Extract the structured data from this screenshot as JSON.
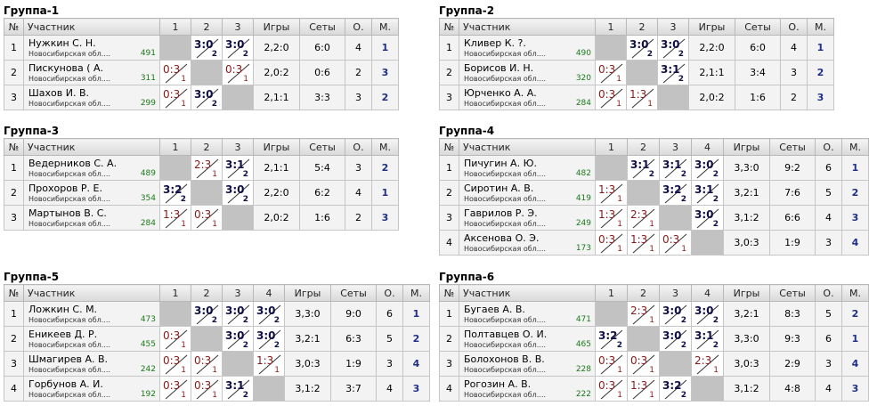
{
  "groups": [
    {
      "title": "Группа-1",
      "headers": {
        "num": "№",
        "player": "Участник",
        "games": "Игры",
        "sets": "Сеты",
        "points": "О.",
        "place": "М."
      },
      "opponents": [
        "1",
        "2",
        "3"
      ],
      "rows": [
        {
          "num": "1",
          "name": "Нужкин С. Н.",
          "region": "Новосибирская обл....",
          "rating": "491",
          "cells": [
            null,
            {
              "score": "3:0",
              "sub": "2",
              "result": "win"
            },
            {
              "score": "3:0",
              "sub": "2",
              "result": "win"
            }
          ],
          "games": "2,2:0",
          "sets": "6:0",
          "points": "4",
          "place": "1"
        },
        {
          "num": "2",
          "name": "Пискунова ( А.",
          "region": "Новосибирская обл....",
          "rating": "311",
          "cells": [
            {
              "score": "0:3",
              "sub": "1",
              "result": "loss"
            },
            null,
            {
              "score": "0:3",
              "sub": "1",
              "result": "loss"
            }
          ],
          "games": "2,0:2",
          "sets": "0:6",
          "points": "2",
          "place": "3"
        },
        {
          "num": "3",
          "name": "Шахов И. В.",
          "region": "Новосибирская обл....",
          "rating": "299",
          "cells": [
            {
              "score": "0:3",
              "sub": "1",
              "result": "loss"
            },
            {
              "score": "3:0",
              "sub": "2",
              "result": "win"
            },
            null
          ],
          "games": "2,1:1",
          "sets": "3:3",
          "points": "3",
          "place": "2"
        }
      ]
    },
    {
      "title": "Группа-2",
      "headers": {
        "num": "№",
        "player": "Участник",
        "games": "Игры",
        "sets": "Сеты",
        "points": "О.",
        "place": "М."
      },
      "opponents": [
        "1",
        "2",
        "3"
      ],
      "rows": [
        {
          "num": "1",
          "name": "Кливер К. ?.",
          "region": "Новосибирская обл....",
          "rating": "490",
          "cells": [
            null,
            {
              "score": "3:0",
              "sub": "2",
              "result": "win"
            },
            {
              "score": "3:0",
              "sub": "2",
              "result": "win"
            }
          ],
          "games": "2,2:0",
          "sets": "6:0",
          "points": "4",
          "place": "1"
        },
        {
          "num": "2",
          "name": "Борисов И. Н.",
          "region": "Новосибирская обл....",
          "rating": "320",
          "cells": [
            {
              "score": "0:3",
              "sub": "1",
              "result": "loss"
            },
            null,
            {
              "score": "3:1",
              "sub": "2",
              "result": "win"
            }
          ],
          "games": "2,1:1",
          "sets": "3:4",
          "points": "3",
          "place": "2"
        },
        {
          "num": "3",
          "name": "Юрченко А. А.",
          "region": "Новосибирская обл....",
          "rating": "284",
          "cells": [
            {
              "score": "0:3",
              "sub": "1",
              "result": "loss"
            },
            {
              "score": "1:3",
              "sub": "1",
              "result": "loss"
            },
            null
          ],
          "games": "2,0:2",
          "sets": "1:6",
          "points": "2",
          "place": "3"
        }
      ]
    },
    {
      "title": "Группа-3",
      "headers": {
        "num": "№",
        "player": "Участник",
        "games": "Игры",
        "sets": "Сеты",
        "points": "О.",
        "place": "М."
      },
      "opponents": [
        "1",
        "2",
        "3"
      ],
      "rows": [
        {
          "num": "1",
          "name": "Ведерников С. А.",
          "region": "Новосибирская обл....",
          "rating": "489",
          "cells": [
            null,
            {
              "score": "2:3",
              "sub": "1",
              "result": "loss"
            },
            {
              "score": "3:1",
              "sub": "2",
              "result": "win"
            }
          ],
          "games": "2,1:1",
          "sets": "5:4",
          "points": "3",
          "place": "2"
        },
        {
          "num": "2",
          "name": "Прохоров Р. Е.",
          "region": "Новосибирская обл....",
          "rating": "354",
          "cells": [
            {
              "score": "3:2",
              "sub": "2",
              "result": "win"
            },
            null,
            {
              "score": "3:0",
              "sub": "2",
              "result": "win"
            }
          ],
          "games": "2,2:0",
          "sets": "6:2",
          "points": "4",
          "place": "1"
        },
        {
          "num": "3",
          "name": "Мартынов В. С.",
          "region": "Новосибирская обл....",
          "rating": "284",
          "cells": [
            {
              "score": "1:3",
              "sub": "1",
              "result": "loss"
            },
            {
              "score": "0:3",
              "sub": "1",
              "result": "loss"
            },
            null
          ],
          "games": "2,0:2",
          "sets": "1:6",
          "points": "2",
          "place": "3"
        }
      ]
    },
    {
      "title": "Группа-4",
      "headers": {
        "num": "№",
        "player": "Участник",
        "games": "Игры",
        "sets": "Сеты",
        "points": "О.",
        "place": "М."
      },
      "opponents": [
        "1",
        "2",
        "3",
        "4"
      ],
      "rows": [
        {
          "num": "1",
          "name": "Пичугин А. Ю.",
          "region": "Новосибирская обл....",
          "rating": "482",
          "cells": [
            null,
            {
              "score": "3:1",
              "sub": "2",
              "result": "win"
            },
            {
              "score": "3:1",
              "sub": "2",
              "result": "win"
            },
            {
              "score": "3:0",
              "sub": "2",
              "result": "win"
            }
          ],
          "games": "3,3:0",
          "sets": "9:2",
          "points": "6",
          "place": "1"
        },
        {
          "num": "2",
          "name": "Сиротин А. В.",
          "region": "Новосибирская обл....",
          "rating": "419",
          "cells": [
            {
              "score": "1:3",
              "sub": "1",
              "result": "loss"
            },
            null,
            {
              "score": "3:2",
              "sub": "2",
              "result": "win"
            },
            {
              "score": "3:1",
              "sub": "2",
              "result": "win"
            }
          ],
          "games": "3,2:1",
          "sets": "7:6",
          "points": "5",
          "place": "2"
        },
        {
          "num": "3",
          "name": "Гаврилов Р. Э.",
          "region": "Новосибирская обл....",
          "rating": "249",
          "cells": [
            {
              "score": "1:3",
              "sub": "1",
              "result": "loss"
            },
            {
              "score": "2:3",
              "sub": "1",
              "result": "loss"
            },
            null,
            {
              "score": "3:0",
              "sub": "2",
              "result": "win"
            }
          ],
          "games": "3,1:2",
          "sets": "6:6",
          "points": "4",
          "place": "3"
        },
        {
          "num": "4",
          "name": "Аксенова О. Э.",
          "region": "Новосибирская обл....",
          "rating": "173",
          "cells": [
            {
              "score": "0:3",
              "sub": "1",
              "result": "loss"
            },
            {
              "score": "1:3",
              "sub": "1",
              "result": "loss"
            },
            {
              "score": "0:3",
              "sub": "1",
              "result": "loss"
            },
            null
          ],
          "games": "3,0:3",
          "sets": "1:9",
          "points": "3",
          "place": "4"
        }
      ]
    },
    {
      "title": "Группа-5",
      "headers": {
        "num": "№",
        "player": "Участник",
        "games": "Игры",
        "sets": "Сеты",
        "points": "О.",
        "place": "М."
      },
      "opponents": [
        "1",
        "2",
        "3",
        "4"
      ],
      "rows": [
        {
          "num": "1",
          "name": "Ложкин С. М.",
          "region": "Новосибирская обл....",
          "rating": "473",
          "cells": [
            null,
            {
              "score": "3:0",
              "sub": "2",
              "result": "win"
            },
            {
              "score": "3:0",
              "sub": "2",
              "result": "win"
            },
            {
              "score": "3:0",
              "sub": "2",
              "result": "win"
            }
          ],
          "games": "3,3:0",
          "sets": "9:0",
          "points": "6",
          "place": "1"
        },
        {
          "num": "2",
          "name": "Еникеев Д. Р.",
          "region": "Новосибирская обл....",
          "rating": "455",
          "cells": [
            {
              "score": "0:3",
              "sub": "1",
              "result": "loss"
            },
            null,
            {
              "score": "3:0",
              "sub": "2",
              "result": "win"
            },
            {
              "score": "3:0",
              "sub": "2",
              "result": "win"
            }
          ],
          "games": "3,2:1",
          "sets": "6:3",
          "points": "5",
          "place": "2"
        },
        {
          "num": "3",
          "name": "Шмагирев А. В.",
          "region": "Новосибирская обл....",
          "rating": "242",
          "cells": [
            {
              "score": "0:3",
              "sub": "1",
              "result": "loss"
            },
            {
              "score": "0:3",
              "sub": "1",
              "result": "loss"
            },
            null,
            {
              "score": "1:3",
              "sub": "1",
              "result": "loss"
            }
          ],
          "games": "3,0:3",
          "sets": "1:9",
          "points": "3",
          "place": "4"
        },
        {
          "num": "4",
          "name": "Горбунов А. И.",
          "region": "Новосибирская обл....",
          "rating": "192",
          "cells": [
            {
              "score": "0:3",
              "sub": "1",
              "result": "loss"
            },
            {
              "score": "0:3",
              "sub": "1",
              "result": "loss"
            },
            {
              "score": "3:1",
              "sub": "2",
              "result": "win"
            },
            null
          ],
          "games": "3,1:2",
          "sets": "3:7",
          "points": "4",
          "place": "3"
        }
      ]
    },
    {
      "title": "Группа-6",
      "headers": {
        "num": "№",
        "player": "Участник",
        "games": "Игры",
        "sets": "Сеты",
        "points": "О.",
        "place": "М."
      },
      "opponents": [
        "1",
        "2",
        "3",
        "4"
      ],
      "rows": [
        {
          "num": "1",
          "name": "Бугаев А. В.",
          "region": "Новосибирская обл....",
          "rating": "471",
          "cells": [
            null,
            {
              "score": "2:3",
              "sub": "1",
              "result": "loss"
            },
            {
              "score": "3:0",
              "sub": "2",
              "result": "win"
            },
            {
              "score": "3:0",
              "sub": "2",
              "result": "win"
            }
          ],
          "games": "3,2:1",
          "sets": "8:3",
          "points": "5",
          "place": "2"
        },
        {
          "num": "2",
          "name": "Полтавцев О. И.",
          "region": "Новосибирская обл....",
          "rating": "465",
          "cells": [
            {
              "score": "3:2",
              "sub": "2",
              "result": "win"
            },
            null,
            {
              "score": "3:0",
              "sub": "2",
              "result": "win"
            },
            {
              "score": "3:1",
              "sub": "2",
              "result": "win"
            }
          ],
          "games": "3,3:0",
          "sets": "9:3",
          "points": "6",
          "place": "1"
        },
        {
          "num": "3",
          "name": "Болохонов В. В.",
          "region": "Новосибирская обл....",
          "rating": "228",
          "cells": [
            {
              "score": "0:3",
              "sub": "1",
              "result": "loss"
            },
            {
              "score": "0:3",
              "sub": "1",
              "result": "loss"
            },
            null,
            {
              "score": "2:3",
              "sub": "1",
              "result": "loss"
            }
          ],
          "games": "3,0:3",
          "sets": "2:9",
          "points": "3",
          "place": "4"
        },
        {
          "num": "4",
          "name": "Рогозин А. В.",
          "region": "Новосибирская обл....",
          "rating": "222",
          "cells": [
            {
              "score": "0:3",
              "sub": "1",
              "result": "loss"
            },
            {
              "score": "1:3",
              "sub": "1",
              "result": "loss"
            },
            {
              "score": "3:2",
              "sub": "2",
              "result": "win"
            },
            null
          ],
          "games": "3,1:2",
          "sets": "4:8",
          "points": "4",
          "place": "3"
        }
      ]
    }
  ]
}
